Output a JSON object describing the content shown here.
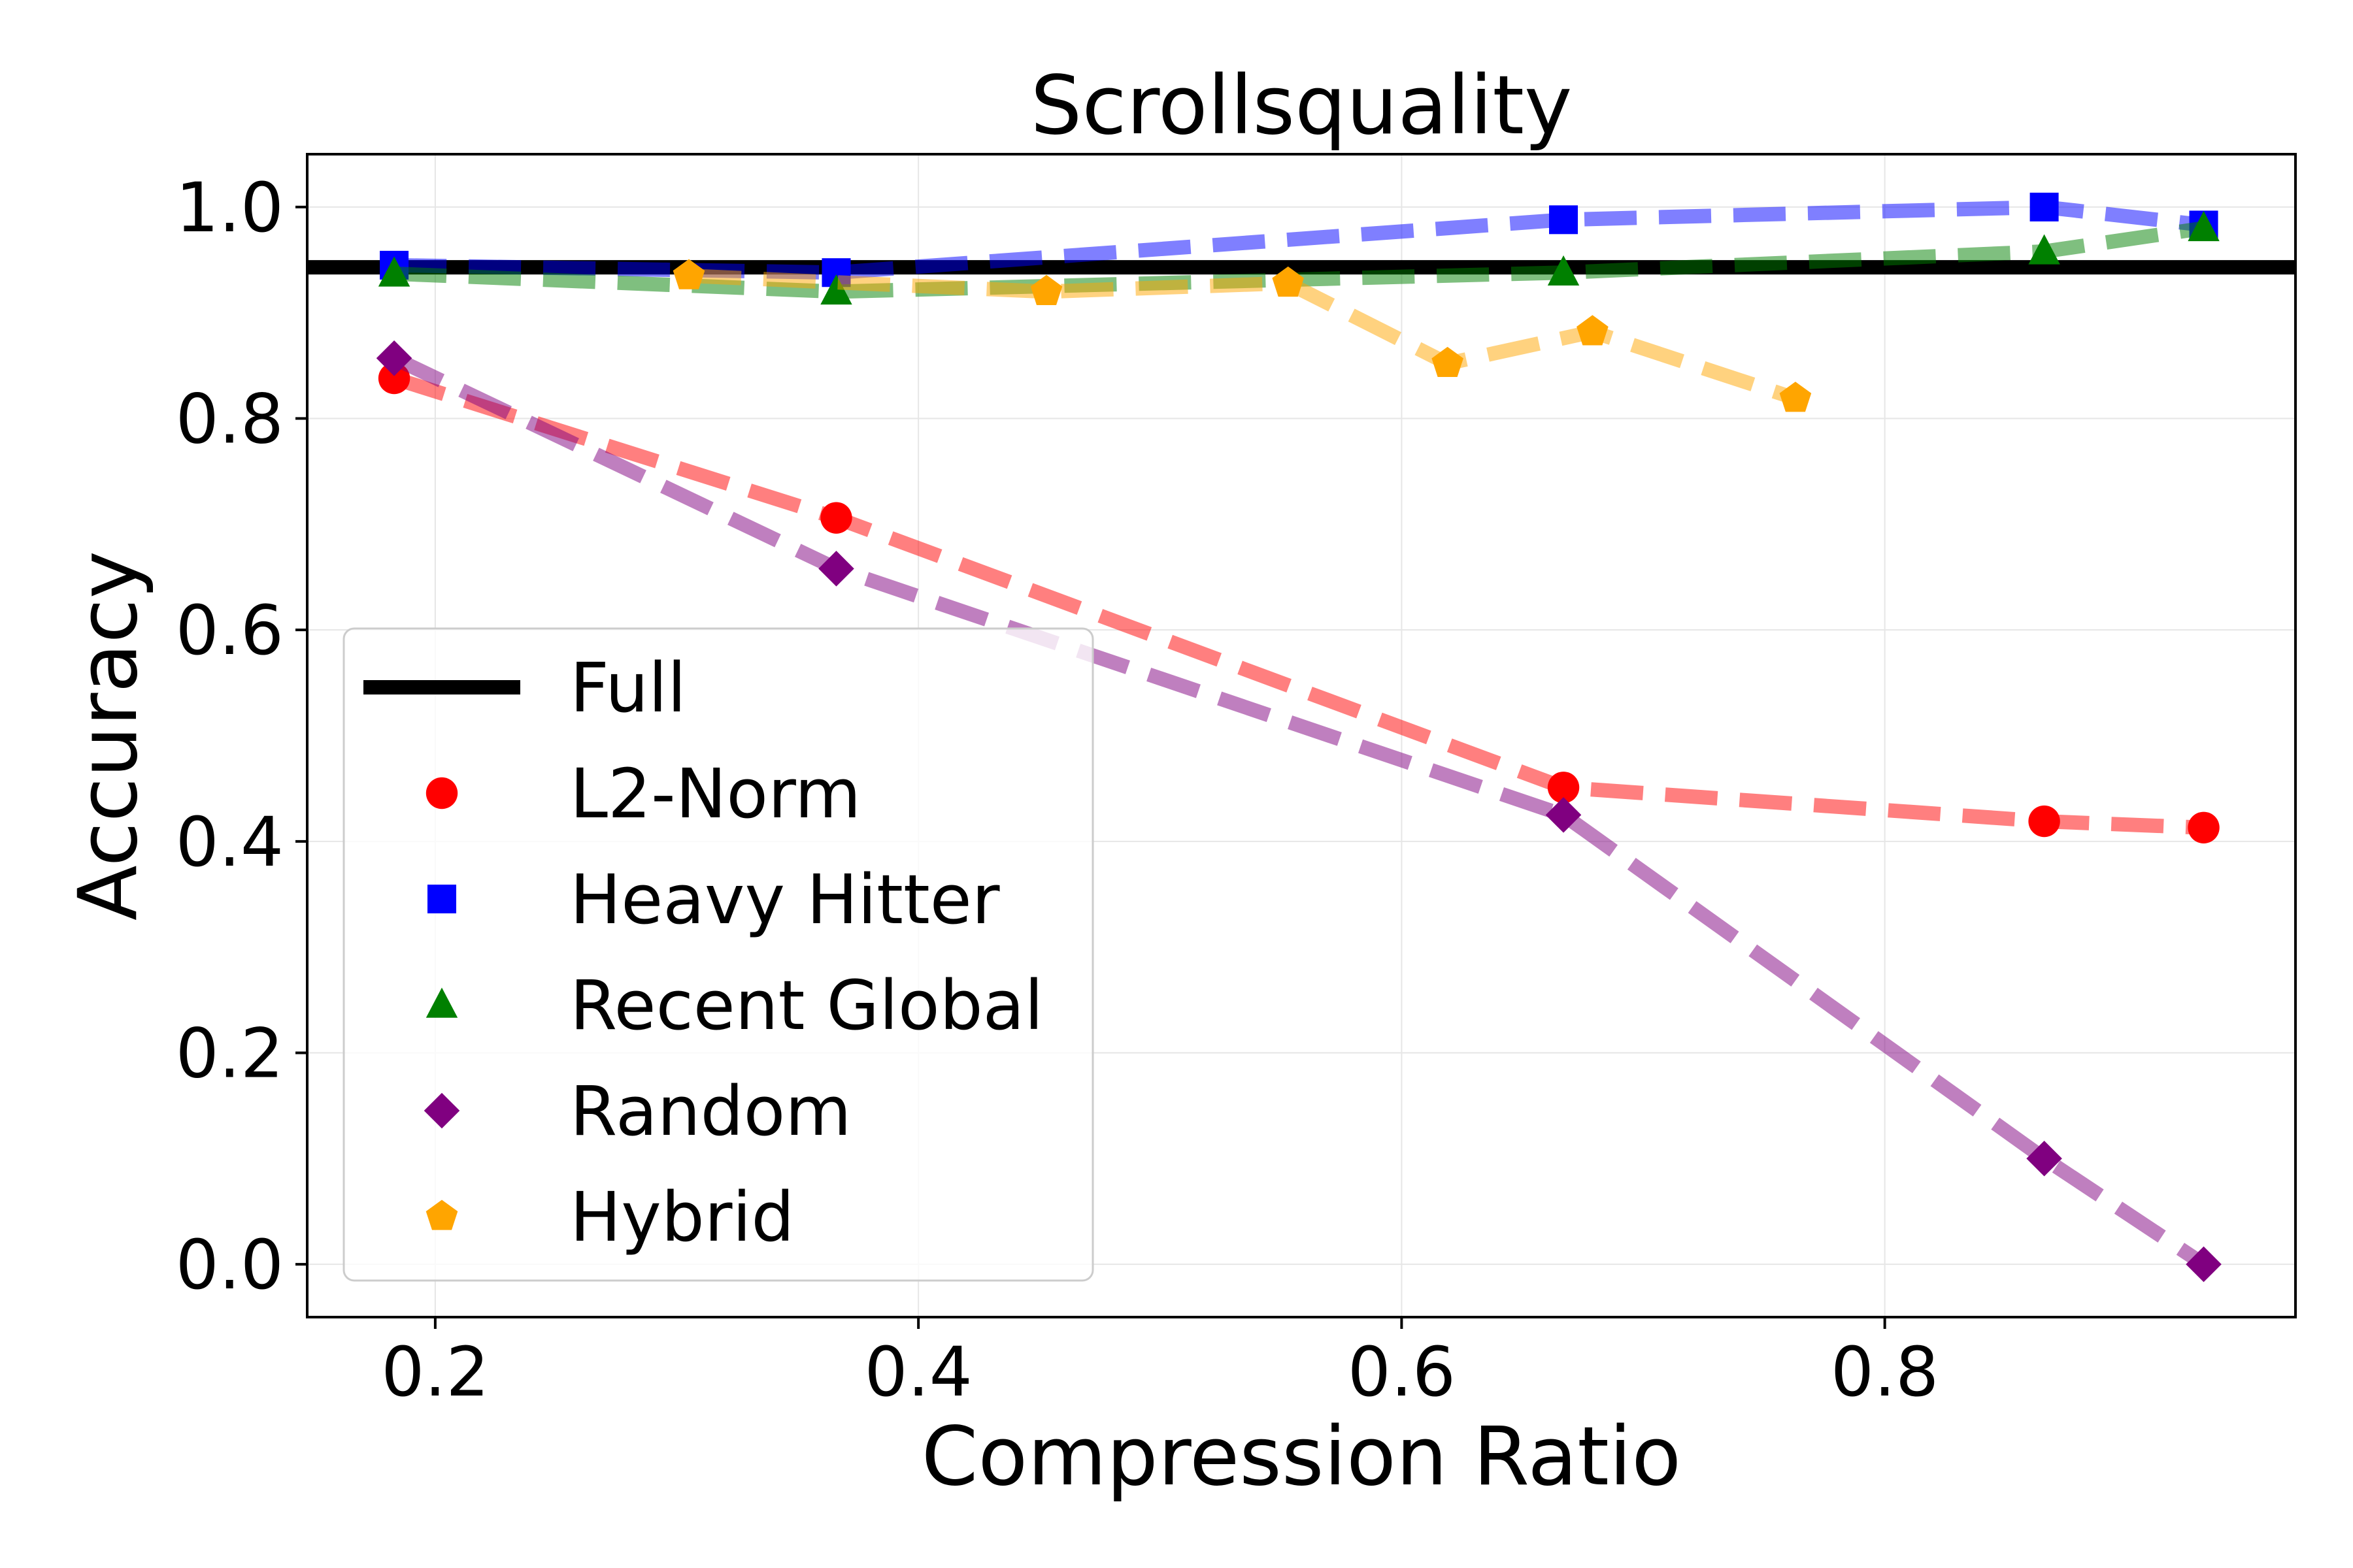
{
  "chart_data": {
    "type": "line",
    "title": "Scrollsquality",
    "xlabel": "Compression Ratio",
    "ylabel": "Accuracy",
    "xlim": [
      0.147,
      0.97
    ],
    "ylim": [
      -0.05,
      1.05
    ],
    "xticks": [
      0.2,
      0.4,
      0.6,
      0.8
    ],
    "yticks": [
      0.0,
      0.2,
      0.4,
      0.6,
      0.8,
      1.0
    ],
    "xtick_labels": [
      "0.2",
      "0.4",
      "0.6",
      "0.8"
    ],
    "ytick_labels": [
      "0.0",
      "0.2",
      "0.4",
      "0.6",
      "0.8",
      "1.0"
    ],
    "grid": true,
    "legend_position": "center-left",
    "reference_line": {
      "name": "Full",
      "y": 0.943,
      "color": "#000000"
    },
    "series": [
      {
        "name": "L2-Norm",
        "color": "#ff0000",
        "marker": "circle",
        "x": [
          0.183,
          0.366,
          0.667,
          0.866,
          0.932
        ],
        "y": [
          0.838,
          0.706,
          0.451,
          0.419,
          0.413
        ]
      },
      {
        "name": "Heavy Hitter",
        "color": "#0000ff",
        "marker": "square",
        "x": [
          0.183,
          0.366,
          0.667,
          0.866,
          0.932
        ],
        "y": [
          0.945,
          0.938,
          0.988,
          1.0,
          0.983
        ]
      },
      {
        "name": "Recent Global",
        "color": "#008000",
        "marker": "triangle",
        "x": [
          0.183,
          0.366,
          0.667,
          0.866,
          0.932
        ],
        "y": [
          0.937,
          0.92,
          0.938,
          0.958,
          0.98
        ]
      },
      {
        "name": "Random",
        "color": "#800080",
        "marker": "diamond",
        "x": [
          0.183,
          0.366,
          0.667,
          0.866,
          0.932
        ],
        "y": [
          0.857,
          0.658,
          0.425,
          0.1,
          0.0
        ]
      },
      {
        "name": "Hybrid",
        "color": "#ffa500",
        "marker": "pentagon",
        "x": [
          0.305,
          0.453,
          0.553,
          0.619,
          0.679,
          0.763
        ],
        "y": [
          0.935,
          0.92,
          0.928,
          0.852,
          0.882,
          0.819
        ]
      }
    ]
  }
}
